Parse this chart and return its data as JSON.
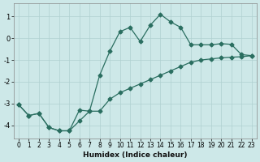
{
  "xlabel": "Humidex (Indice chaleur)",
  "ylabel": "",
  "xlim": [
    -0.5,
    23.5
  ],
  "ylim": [
    -4.6,
    1.6
  ],
  "xticks": [
    0,
    1,
    2,
    3,
    4,
    5,
    6,
    7,
    8,
    9,
    10,
    11,
    12,
    13,
    14,
    15,
    16,
    17,
    18,
    19,
    20,
    21,
    22,
    23
  ],
  "yticks": [
    -4,
    -3,
    -2,
    -1,
    0,
    1
  ],
  "bg_color": "#cde8e8",
  "line_color": "#2a6e60",
  "grid_color": "#b0d0d0",
  "line1_x": [
    0,
    1,
    2,
    3,
    4,
    5,
    6,
    7,
    8,
    9,
    10,
    11,
    12,
    13,
    14,
    15,
    16,
    17,
    18,
    19,
    20,
    21,
    22,
    23
  ],
  "line1_y": [
    -3.05,
    -3.55,
    -3.45,
    -4.1,
    -4.25,
    -4.25,
    -3.8,
    -3.35,
    -3.35,
    -2.8,
    -2.5,
    -2.3,
    -2.1,
    -1.9,
    -1.7,
    -1.5,
    -1.3,
    -1.1,
    -1.0,
    -0.95,
    -0.9,
    -0.87,
    -0.85,
    -0.8
  ],
  "line2_x": [
    0,
    1,
    2,
    3,
    4,
    5,
    6,
    7,
    8,
    9,
    10,
    11,
    12,
    13,
    14,
    15,
    16,
    17,
    18,
    19,
    20,
    21,
    22,
    23
  ],
  "line2_y": [
    -3.05,
    -3.55,
    -3.45,
    -4.1,
    -4.25,
    -4.25,
    -3.3,
    -3.35,
    -1.7,
    -0.6,
    0.3,
    0.5,
    -0.15,
    0.6,
    1.1,
    0.75,
    0.5,
    -0.3,
    -0.3,
    -0.3,
    -0.25,
    -0.28,
    -0.75,
    -0.8
  ],
  "marker": "D",
  "marker_size": 2.5,
  "linewidth": 0.9
}
